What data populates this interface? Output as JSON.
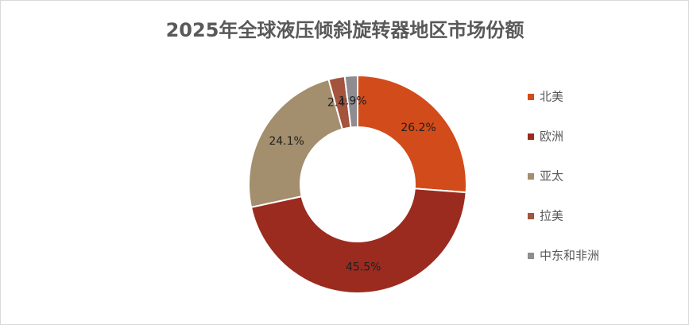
{
  "chart_data": {
    "type": "donut",
    "title": "2025年全球液压倾斜旋转器地区市场份额",
    "categories": [
      "北美",
      "欧洲",
      "亚太",
      "拉美",
      "中东和非洲"
    ],
    "values": [
      26.2,
      45.5,
      24.1,
      2.4,
      1.9
    ],
    "value_labels": [
      "26.2%",
      "45.5%",
      "24.1%",
      "2.4%",
      "1.9%"
    ],
    "colors": [
      "#d24b1a",
      "#9b2b1f",
      "#a38e6d",
      "#a4533d",
      "#8e8b91"
    ],
    "legend": "right"
  }
}
